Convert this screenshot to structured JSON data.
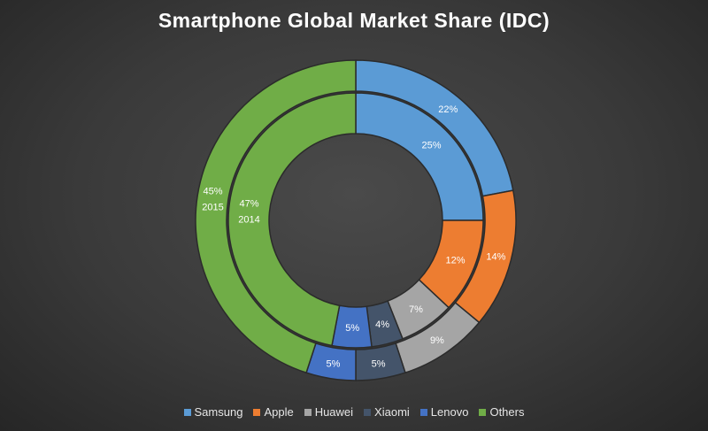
{
  "chart_data": {
    "type": "pie",
    "subtype": "nested-doughnut",
    "title": "Smartphone Global Market Share (IDC)",
    "categories": [
      "Samsung",
      "Apple",
      "Huawei",
      "Xiaomi",
      "Lenovo",
      "Others"
    ],
    "colors": [
      "#5b9bd5",
      "#ed7d31",
      "#a5a5a5",
      "#44546a",
      "#4472c4",
      "#70ad47"
    ],
    "series": [
      {
        "name": "2015",
        "values": [
          22,
          14,
          9,
          5,
          5,
          45
        ],
        "labels": [
          "22%",
          "14%",
          "9%",
          "5%",
          "5%",
          "45%"
        ]
      },
      {
        "name": "2014",
        "values": [
          25,
          12,
          7,
          4,
          5,
          47
        ],
        "labels": [
          "25%",
          "12%",
          "7%",
          "4%",
          "5%",
          "47%"
        ]
      }
    ],
    "legend_position": "bottom"
  }
}
